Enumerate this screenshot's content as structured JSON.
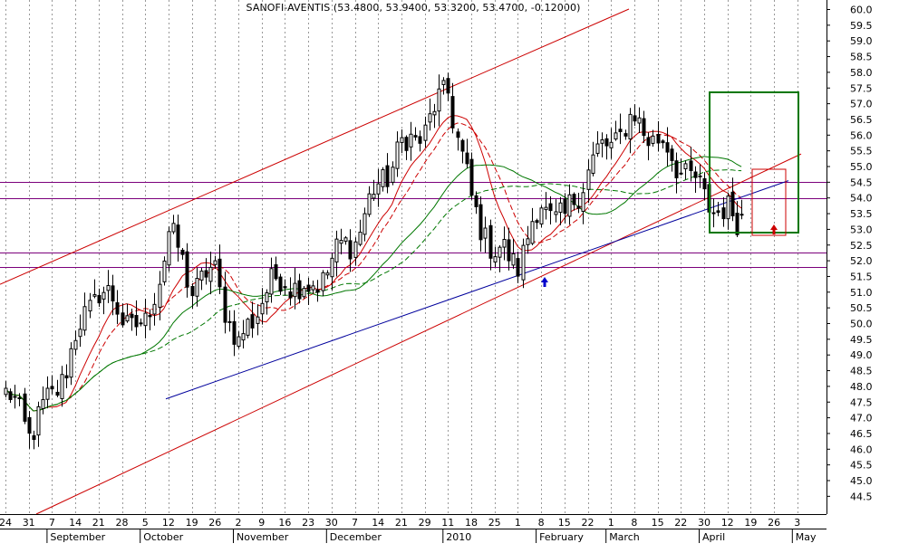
{
  "chart_data": {
    "type": "candlestick",
    "title": "SANOFI-AVENTIS (53.4800, 53.9400, 53.3200, 53.4700, -0.12000)",
    "y_axis": {
      "position": "right",
      "min": 44.0,
      "max": 60.0,
      "ticks": [
        "60.0",
        "59.5",
        "59.0",
        "58.5",
        "58.0",
        "57.5",
        "57.0",
        "56.5",
        "56.0",
        "55.5",
        "55.0",
        "54.5",
        "54.0",
        "53.5",
        "53.0",
        "52.5",
        "52.0",
        "51.5",
        "51.0",
        "50.5",
        "50.0",
        "49.5",
        "49.0",
        "48.5",
        "48.0",
        "47.5",
        "47.0",
        "46.5",
        "46.0",
        "45.5",
        "45.0",
        "44.5"
      ]
    },
    "x_axis": {
      "day_labels": [
        "24",
        "31",
        "7",
        "14",
        "21",
        "28",
        "5",
        "12",
        "19",
        "26",
        "2",
        "9",
        "16",
        "23",
        "30",
        "7",
        "14",
        "21",
        "29",
        "11",
        "18",
        "25",
        "1",
        "8",
        "15",
        "22",
        "1",
        "8",
        "15",
        "22",
        "30",
        "12",
        "19",
        "26",
        "3"
      ],
      "month_labels": [
        "September",
        "October",
        "November",
        "December",
        "2010",
        "February",
        "March",
        "April",
        "May"
      ]
    },
    "price_start": "2009-08-24",
    "price_end": "2010-04-22",
    "closes_weekly": [
      47.8,
      46.6,
      47.6,
      49.5,
      51.2,
      50.2,
      49.8,
      52.9,
      51.2,
      51.6,
      49.2,
      50.9,
      51.5,
      51.0,
      52.0,
      52.8,
      54.4,
      55.6,
      56.2,
      57.5,
      53.8,
      52.3,
      52.0,
      53.8,
      53.2,
      55.0,
      55.8,
      56.5,
      55.8,
      55.0,
      54.0,
      53.47
    ],
    "horizontal_lines": [
      {
        "value": 54.5,
        "color": "#7b007b"
      },
      {
        "value": 54.0,
        "color": "#7b007b"
      },
      {
        "value": 52.25,
        "color": "#7b007b"
      },
      {
        "value": 51.8,
        "color": "#7b007b"
      }
    ],
    "trend_lines": [
      {
        "color": "#cc0000",
        "description": "upper channel"
      },
      {
        "color": "#cc0000",
        "description": "lower channel"
      },
      {
        "color": "#00009c",
        "description": "support"
      }
    ],
    "moving_averages": [
      {
        "color": "#cc0000",
        "style": "solid"
      },
      {
        "color": "#cc0000",
        "style": "dashed"
      },
      {
        "color": "#007700",
        "style": "solid"
      },
      {
        "color": "#007700",
        "style": "dashed"
      }
    ],
    "annotations": [
      {
        "type": "arrow",
        "color": "#0000cc",
        "date": "2010-02-08"
      },
      {
        "type": "arrow",
        "color": "#cc0000",
        "date": "2010-04-22"
      },
      {
        "type": "box",
        "color": "#007700"
      },
      {
        "type": "box",
        "color": "#cc0000"
      }
    ],
    "grid": "vertical-dotted",
    "colors": {
      "candle_up": "#ffffff",
      "candle_down": "#000000",
      "grid": "#999999",
      "horizontal_level": "#7b007b",
      "channel": "#cc0000",
      "support": "#00009c",
      "ma_green": "#007700",
      "ma_red": "#cc0000"
    }
  }
}
